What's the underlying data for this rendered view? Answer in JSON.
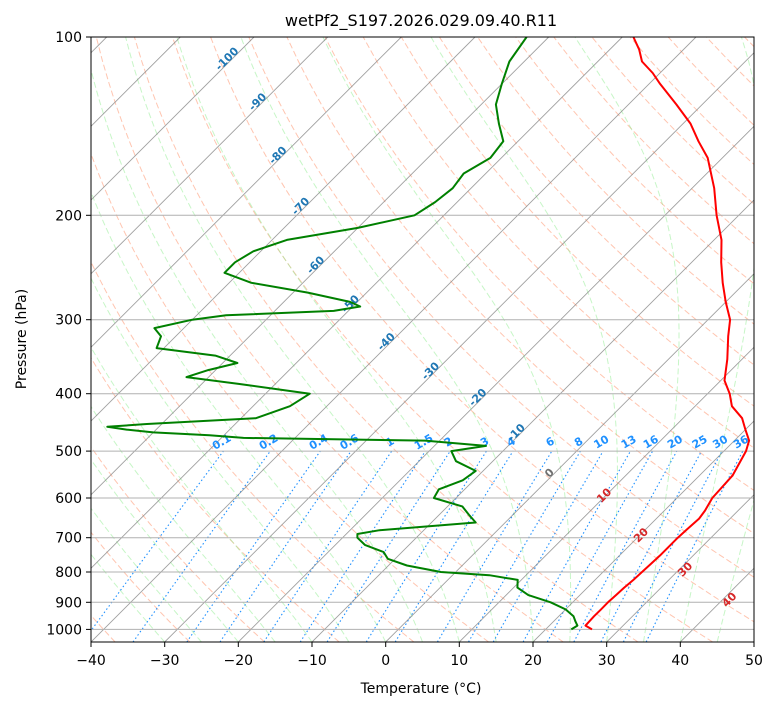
{
  "chart_data": {
    "type": "skew-t",
    "title": "wetPf2_S197.2026.029.09.40.R11",
    "xlabel": "Temperature (°C)",
    "ylabel": "Pressure (hPa)",
    "xlim": [
      -40,
      50
    ],
    "ylim": [
      1050,
      100
    ],
    "y_scale": "log",
    "x_ticks": [
      "−40",
      "−30",
      "−20",
      "−10",
      "0",
      "10",
      "20",
      "30",
      "40",
      "50"
    ],
    "y_ticks": [
      "100",
      "200",
      "300",
      "400",
      "500",
      "600",
      "700",
      "800",
      "900",
      "1000"
    ],
    "grid": true,
    "skew_degrees": 45,
    "colors": {
      "temperature": "#ff0000",
      "dewpoint": "#008000",
      "dry_adiabat": "#ff7f50",
      "moist_adiabat": "#90ee90",
      "mixing_ratio": "#1e90ff",
      "isotherm": "#808080",
      "dry_adiabat_label": "#d62728",
      "moist_adiabat_label": "#1f77b4",
      "mixing_ratio_label": "#1e90ff"
    },
    "dry_adiabat_labels": [
      "10",
      "20",
      "30",
      "40"
    ],
    "moist_adiabat_labels": [
      "-100",
      "-90",
      "-80",
      "-70",
      "-60",
      "-50",
      "-40",
      "-30",
      "-20",
      "-10",
      "0"
    ],
    "mixing_ratio_labels": [
      "0.1",
      "0.2",
      "0.4",
      "0.6",
      "1",
      "1.5",
      "2",
      "3",
      "4",
      "6",
      "8",
      "10",
      "13",
      "16",
      "20",
      "25",
      "30",
      "36"
    ],
    "series": [
      {
        "name": "temperature",
        "pressure": [
          1000,
          985,
          950,
          925,
          900,
          875,
          850,
          825,
          800,
          775,
          750,
          700,
          680,
          650,
          630,
          600,
          550,
          500,
          480,
          460,
          440,
          420,
          400,
          380,
          350,
          320,
          300,
          280,
          260,
          240,
          220,
          200,
          180,
          160,
          150,
          140,
          130,
          120,
          115,
          110,
          105,
          100
        ],
        "values": [
          26.3,
          24.9,
          24.8,
          24.8,
          24.8,
          24.9,
          25.0,
          25.2,
          25.3,
          25.4,
          25.5,
          25.5,
          25.6,
          25.8,
          25.5,
          24.8,
          24.5,
          23.0,
          22.0,
          20.0,
          18.0,
          15.0,
          13.0,
          10.5,
          8.0,
          5.0,
          3.0,
          0.0,
          -3.0,
          -6.0,
          -9.0,
          -13.0,
          -17.0,
          -22.0,
          -25.5,
          -29.0,
          -33.5,
          -38.5,
          -41.0,
          -44.0,
          -46.0,
          -48.5
        ]
      },
      {
        "name": "dewpoint",
        "pressure": [
          1000,
          985,
          970,
          950,
          925,
          900,
          875,
          850,
          825,
          810,
          800,
          780,
          760,
          740,
          720,
          700,
          690,
          680,
          660,
          640,
          620,
          600,
          580,
          560,
          540,
          520,
          500,
          490,
          480,
          475,
          470,
          465,
          460,
          455,
          450,
          440,
          420,
          400,
          385,
          375,
          365,
          355,
          345,
          335,
          320,
          310,
          300,
          295,
          290,
          285,
          280,
          270,
          260,
          250,
          240,
          230,
          220,
          210,
          200,
          190,
          180,
          170,
          160,
          150,
          140,
          130,
          120,
          110,
          100
        ],
        "values": [
          23.5,
          23.8,
          23.0,
          22.0,
          20.0,
          17.0,
          13.0,
          10.5,
          9.5,
          5.0,
          -2.0,
          -7.5,
          -11.0,
          -12.5,
          -16.0,
          -18.0,
          -18.5,
          -16.0,
          -4.0,
          -6.0,
          -8.0,
          -13.0,
          -13.5,
          -11.5,
          -11.0,
          -15.0,
          -17.0,
          -13.0,
          -22.0,
          -47.0,
          -52.0,
          -60.0,
          -64.0,
          -67.0,
          -62.0,
          -48.0,
          -45.0,
          -44.0,
          -55.0,
          -63.0,
          -61.0,
          -58.0,
          -62.0,
          -71.0,
          -72.0,
          -74.0,
          -70.0,
          -66.0,
          -52.0,
          -49.0,
          -51.0,
          -58.0,
          -67.0,
          -72.0,
          -72.0,
          -71.0,
          -68.0,
          -60.0,
          -54.0,
          -53.0,
          -52.5,
          -53.0,
          -51.5,
          -52.0,
          -55.0,
          -58.0,
          -60.0,
          -62.0,
          -63.0
        ]
      }
    ]
  }
}
